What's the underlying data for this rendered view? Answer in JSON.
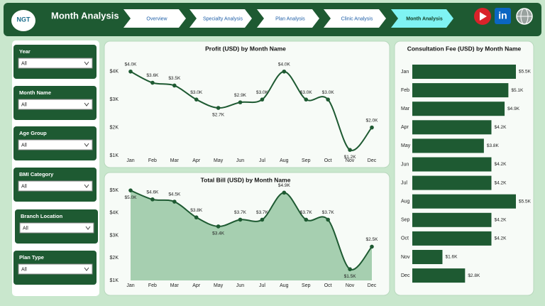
{
  "header": {
    "logo": "NGT",
    "title": "Month Analysis",
    "linkedin": "in"
  },
  "nav": [
    "Overview",
    "Specialty Analysis",
    "Plan Analysis",
    "Clinic Analysis",
    "Month Analysis"
  ],
  "active_nav": 4,
  "filters": [
    {
      "label": "Year",
      "value": "All"
    },
    {
      "label": "Month Name",
      "value": "All"
    },
    {
      "label": "Age Group",
      "value": "All"
    },
    {
      "label": "BMI Category",
      "value": "All"
    },
    {
      "label": "Branch Location",
      "value": "All"
    },
    {
      "label": "Plan Type",
      "value": "All"
    }
  ],
  "chart_data": [
    {
      "type": "line",
      "title": "Profit (USD) by Month Name",
      "color": "#1e5a32",
      "categories": [
        "Jan",
        "Feb",
        "Mar",
        "Apr",
        "May",
        "Jun",
        "Jul",
        "Aug",
        "Sep",
        "Oct",
        "Nov",
        "Dec"
      ],
      "values": [
        4000,
        3600,
        3500,
        3000,
        2700,
        2900,
        3000,
        4000,
        3000,
        3000,
        1200,
        2000
      ],
      "value_labels": [
        "$4.0K",
        "$3.6K",
        "$3.5K",
        "$3.0K",
        "$2.7K",
        "$2.9K",
        "$3.0K",
        "$4.0K",
        "$3.0K",
        "$3.0K",
        "$1.2K",
        "$2.0K"
      ],
      "ylim": [
        1000,
        4400
      ],
      "yticks": [
        {
          "value": 1000,
          "label": "$1K"
        },
        {
          "value": 2000,
          "label": "$2K"
        },
        {
          "value": 3000,
          "label": "$3K"
        },
        {
          "value": 4000,
          "label": "$4K"
        }
      ]
    },
    {
      "type": "area",
      "title": "Total Bill (USD) by Month Name",
      "color": "#1e5a32",
      "fill": "#a6cfb0",
      "categories": [
        "Jan",
        "Feb",
        "Mar",
        "Apr",
        "May",
        "Jun",
        "Jul",
        "Aug",
        "Sep",
        "Oct",
        "Nov",
        "Dec"
      ],
      "values": [
        5000,
        4600,
        4500,
        3800,
        3400,
        3700,
        3700,
        4900,
        3700,
        3700,
        1500,
        2500
      ],
      "value_labels": [
        "$5.0K",
        "$4.6K",
        "$4.5K",
        "$3.8K",
        "$3.4K",
        "$3.7K",
        "$3.7K",
        "$4.9K",
        "$3.7K",
        "$3.7K",
        "$1.5K",
        "$2.5K"
      ],
      "ylim": [
        1000,
        5100
      ],
      "yticks": [
        {
          "value": 1000,
          "label": "$1K"
        },
        {
          "value": 2000,
          "label": "$2K"
        },
        {
          "value": 3000,
          "label": "$3K"
        },
        {
          "value": 4000,
          "label": "$4K"
        },
        {
          "value": 5000,
          "label": "$5K"
        }
      ]
    },
    {
      "type": "barh",
      "title": "Consultation Fee (USD) by Month Name",
      "color": "#1e5a32",
      "categories": [
        "Jan",
        "Feb",
        "Mar",
        "Apr",
        "May",
        "Jun",
        "Jul",
        "Aug",
        "Sep",
        "Oct",
        "Nov",
        "Dec"
      ],
      "values": [
        5500,
        5100,
        4900,
        4200,
        3800,
        4200,
        4200,
        5500,
        4200,
        4200,
        1600,
        2800
      ],
      "value_labels": [
        "$5.5K",
        "$5.1K",
        "$4.9K",
        "$4.2K",
        "$3.8K",
        "$4.2K",
        "$4.2K",
        "$5.5K",
        "$4.2K",
        "$4.2K",
        "$1.6K",
        "$2.8K"
      ],
      "xlim": [
        0,
        5500
      ]
    }
  ]
}
